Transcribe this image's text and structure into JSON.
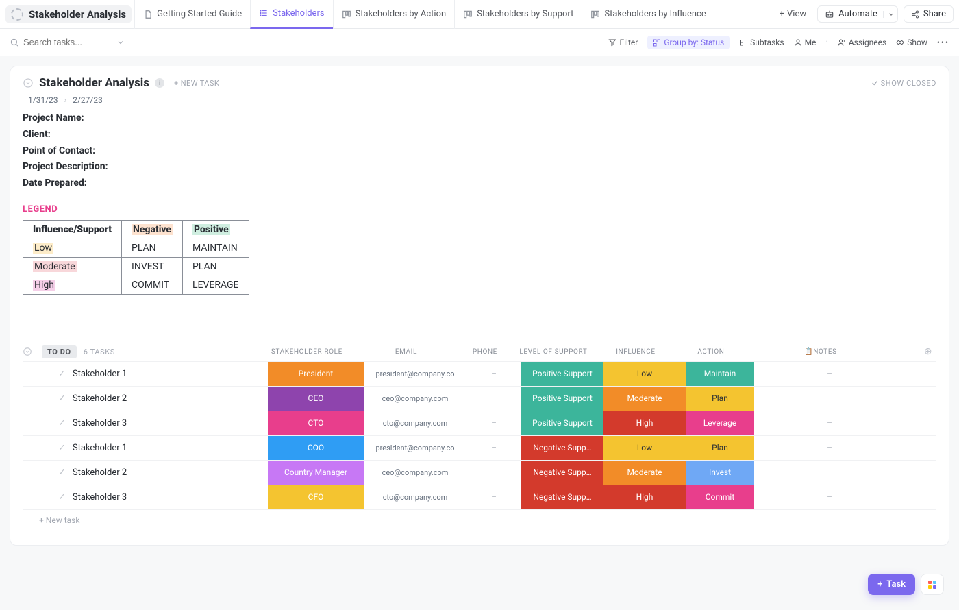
{
  "app": {
    "title": "Stakeholder Analysis"
  },
  "tabs": [
    {
      "label": "Getting Started Guide",
      "icon": "doc"
    },
    {
      "label": "Stakeholders",
      "icon": "list",
      "active": true
    },
    {
      "label": "Stakeholders by Action",
      "icon": "board"
    },
    {
      "label": "Stakeholders by Support",
      "icon": "board"
    },
    {
      "label": "Stakeholders by Influence",
      "icon": "board"
    }
  ],
  "addview_label": "View",
  "top_actions": {
    "automate": "Automate",
    "share": "Share"
  },
  "toolbar": {
    "search_placeholder": "Search tasks...",
    "filter": "Filter",
    "group_by": "Group by: Status",
    "subtasks": "Subtasks",
    "me": "Me",
    "assignees": "Assignees",
    "show": "Show"
  },
  "panel": {
    "title": "Stakeholder Analysis",
    "new_task": "+ NEW TASK",
    "show_closed": "SHOW CLOSED",
    "date_start": "1/31/23",
    "date_end": "2/27/23",
    "meta": {
      "project_name": "Project Name:",
      "client": "Client:",
      "poc": "Point of Contact:",
      "desc": "Project Description:",
      "date_prepared": "Date Prepared:"
    },
    "legend_heading": "LEGEND"
  },
  "legend": {
    "header": [
      "Influence/Support",
      "Negative",
      "Positive"
    ],
    "rows": [
      {
        "label": "Low",
        "neg": "PLAN",
        "pos": "MAINTAIN",
        "label_hl": "hl-low"
      },
      {
        "label": "Moderate",
        "neg": "INVEST",
        "pos": "PLAN",
        "label_hl": "hl-mod"
      },
      {
        "label": "High",
        "neg": "COMMIT",
        "pos": "LEVERAGE",
        "label_hl": "hl-high"
      }
    ],
    "neg_hl": "hl-neg",
    "pos_hl": "hl-pos"
  },
  "grid": {
    "status_label": "TO DO",
    "task_count": "6 TASKS",
    "columns": {
      "role": "STAKEHOLDER ROLE",
      "email": "EMAIL",
      "phone": "PHONE",
      "support": "LEVEL OF SUPPORT",
      "influence": "INFLUENCE",
      "action": "ACTION",
      "notes": "📋NOTES"
    },
    "colors": {
      "role_president": "#f28c28",
      "role_ceo": "#8e44ad",
      "role_cto": "#e83e8c",
      "role_coo": "#2f9df4",
      "role_cm": "#c778f5",
      "role_cfo": "#f4c430",
      "support_positive": "#3cb59b",
      "support_negative": "#d33a2c",
      "inf_low": "#f4c430",
      "inf_mod": "#f28c28",
      "inf_high": "#d33a2c",
      "act_maintain": "#3cb59b",
      "act_plan": "#f4c430",
      "act_leverage": "#e83e8c",
      "act_invest": "#6fa8f5",
      "act_commit": "#e83e8c"
    },
    "rows": [
      {
        "name": "Stakeholder 1",
        "role": "President",
        "role_c": "role_president",
        "email": "president@company.co",
        "phone": "–",
        "support": "Positive Support",
        "support_c": "support_positive",
        "influence": "Low",
        "inf_c": "inf_low",
        "action": "Maintain",
        "act_c": "act_maintain",
        "notes": "–"
      },
      {
        "name": "Stakeholder 2",
        "role": "CEO",
        "role_c": "role_ceo",
        "email": "ceo@company.com",
        "phone": "–",
        "support": "Positive Support",
        "support_c": "support_positive",
        "influence": "Moderate",
        "inf_c": "inf_mod",
        "action": "Plan",
        "act_c": "act_plan",
        "notes": "–"
      },
      {
        "name": "Stakeholder 3",
        "role": "CTO",
        "role_c": "role_cto",
        "email": "cto@company.com",
        "phone": "–",
        "support": "Positive Support",
        "support_c": "support_positive",
        "influence": "High",
        "inf_c": "inf_high",
        "action": "Leverage",
        "act_c": "act_leverage",
        "notes": "–"
      },
      {
        "name": "Stakeholder 1",
        "role": "COO",
        "role_c": "role_coo",
        "email": "president@company.co",
        "phone": "–",
        "support": "Negative Supp…",
        "support_c": "support_negative",
        "influence": "Low",
        "inf_c": "inf_low",
        "action": "Plan",
        "act_c": "act_plan",
        "notes": "–"
      },
      {
        "name": "Stakeholder 2",
        "role": "Country Manager",
        "role_c": "role_cm",
        "email": "ceo@company.com",
        "phone": "–",
        "support": "Negative Supp…",
        "support_c": "support_negative",
        "influence": "Moderate",
        "inf_c": "inf_mod",
        "action": "Invest",
        "act_c": "act_invest",
        "notes": "–"
      },
      {
        "name": "Stakeholder 3",
        "role": "CFO",
        "role_c": "role_cfo",
        "email": "cto@company.com",
        "phone": "–",
        "support": "Negative Supp…",
        "support_c": "support_negative",
        "influence": "High",
        "inf_c": "inf_high",
        "action": "Commit",
        "act_c": "act_commit",
        "notes": "–"
      }
    ],
    "add_row": "+ New task"
  },
  "fab": {
    "task": "Task"
  }
}
